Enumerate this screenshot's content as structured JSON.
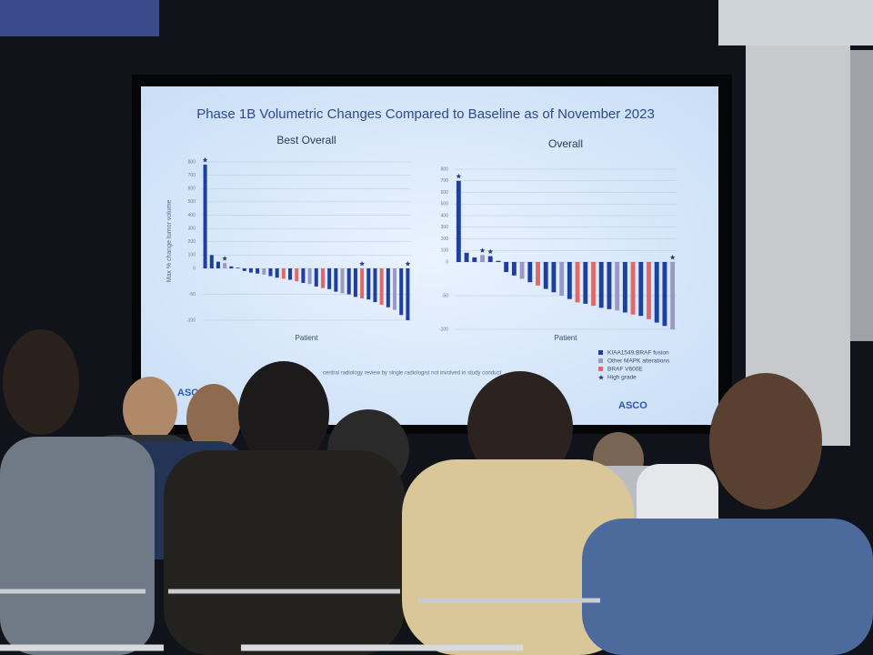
{
  "slide": {
    "title": "Phase 1B Volumetric Changes Compared to Baseline as of November 2023",
    "logo": "ASCO",
    "footnote": "central radiology review by single radiologist not involved in study conduct",
    "legend": [
      {
        "name": "KIAA1549:BRAF fusion",
        "color": "#1f3f9e"
      },
      {
        "name": "Other MAPK alterations",
        "color": "#9a9ac0"
      },
      {
        "name": "BRAF V600E",
        "color": "#e06a6a"
      },
      {
        "name": "High grade",
        "color": "#2b3a8c"
      }
    ],
    "charts": [
      {
        "type": "bar",
        "title": "Best Overall",
        "x_label": "Patient",
        "y_label": "Max % change tumor volume",
        "ylim": [
          -100,
          800
        ],
        "yticks": [
          800,
          700,
          600,
          500,
          400,
          300,
          200,
          100,
          0,
          -50,
          -100
        ],
        "values": [
          780,
          100,
          50,
          40,
          15,
          5,
          -5,
          -8,
          -10,
          -12,
          -15,
          -18,
          -20,
          -22,
          -25,
          -28,
          -30,
          -35,
          -38,
          -40,
          -45,
          -48,
          -50,
          -55,
          -58,
          -60,
          -65,
          -70,
          -75,
          -80,
          -90,
          -100
        ],
        "colors": [
          "#1f3f9e",
          "#1f3f9e",
          "#1f3f9e",
          "#9a9ac0",
          "#1f3f9e",
          "#1f3f9e",
          "#1f3f9e",
          "#1f3f9e",
          "#1f3f9e",
          "#9a9ac0",
          "#1f3f9e",
          "#1f3f9e",
          "#e06a6a",
          "#1f3f9e",
          "#e06a6a",
          "#1f3f9e",
          "#9a9ac0",
          "#1f3f9e",
          "#e06a6a",
          "#1f3f9e",
          "#1f3f9e",
          "#9a9ac0",
          "#1f3f9e",
          "#1f3f9e",
          "#e06a6a",
          "#1f3f9e",
          "#1f3f9e",
          "#e06a6a",
          "#1f3f9e",
          "#9a9ac0",
          "#1f3f9e",
          "#1f3f9e"
        ],
        "high_grade": [
          true,
          false,
          false,
          true,
          false,
          false,
          false,
          false,
          false,
          false,
          false,
          false,
          false,
          false,
          false,
          false,
          false,
          false,
          false,
          false,
          false,
          false,
          false,
          false,
          true,
          false,
          false,
          false,
          false,
          false,
          false,
          true
        ]
      },
      {
        "type": "bar",
        "title": "Overall",
        "x_label": "Patient",
        "y_label": "Max % change tumor volume",
        "ylim": [
          -100,
          800
        ],
        "yticks": [
          800,
          700,
          600,
          500,
          400,
          300,
          200,
          100,
          0,
          -50,
          -100
        ],
        "values": [
          700,
          80,
          40,
          60,
          50,
          10,
          -15,
          -20,
          -25,
          -30,
          -35,
          -40,
          -45,
          -50,
          -55,
          -60,
          -62,
          -65,
          -68,
          -70,
          -72,
          -75,
          -78,
          -80,
          -85,
          -90,
          -95,
          -100
        ],
        "colors": [
          "#1f3f9e",
          "#1f3f9e",
          "#1f3f9e",
          "#9a9ac0",
          "#1f3f9e",
          "#1f3f9e",
          "#1f3f9e",
          "#1f3f9e",
          "#9a9ac0",
          "#1f3f9e",
          "#e06a6a",
          "#1f3f9e",
          "#1f3f9e",
          "#9a9ac0",
          "#1f3f9e",
          "#e06a6a",
          "#1f3f9e",
          "#e06a6a",
          "#1f3f9e",
          "#1f3f9e",
          "#9a9ac0",
          "#1f3f9e",
          "#e06a6a",
          "#1f3f9e",
          "#e06a6a",
          "#1f3f9e",
          "#1f3f9e",
          "#9a9ac0"
        ],
        "high_grade": [
          true,
          false,
          false,
          true,
          true,
          false,
          false,
          false,
          false,
          false,
          false,
          false,
          false,
          false,
          false,
          false,
          false,
          false,
          false,
          false,
          false,
          false,
          false,
          false,
          false,
          false,
          false,
          true
        ]
      }
    ]
  }
}
